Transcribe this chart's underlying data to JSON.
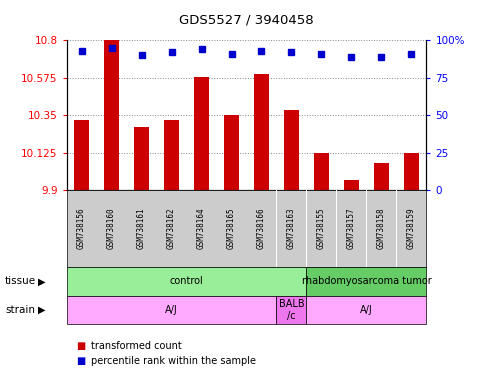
{
  "title": "GDS5527 / 3940458",
  "samples": [
    "GSM738156",
    "GSM738160",
    "GSM738161",
    "GSM738162",
    "GSM738164",
    "GSM738165",
    "GSM738166",
    "GSM738163",
    "GSM738155",
    "GSM738157",
    "GSM738158",
    "GSM738159"
  ],
  "bar_values": [
    10.32,
    10.8,
    10.28,
    10.32,
    10.58,
    10.35,
    10.6,
    10.38,
    10.125,
    9.96,
    10.06,
    10.125
  ],
  "dot_values": [
    93,
    95,
    90,
    92,
    94,
    91,
    93,
    92,
    91,
    89,
    89,
    91
  ],
  "ymin": 9.9,
  "ymax": 10.8,
  "yticks": [
    9.9,
    10.125,
    10.35,
    10.575,
    10.8
  ],
  "ytick_labels": [
    "9.9",
    "10.125",
    "10.35",
    "10.575",
    "10.8"
  ],
  "y2ticks": [
    0,
    25,
    50,
    75,
    100
  ],
  "y2tick_labels": [
    "0",
    "25",
    "50",
    "75",
    "100%"
  ],
  "bar_color": "#cc0000",
  "dot_color": "#0000cc",
  "tissue_groups": [
    {
      "label": "control",
      "start": 0,
      "end": 8,
      "color": "#99ee99"
    },
    {
      "label": "rhabdomyosarcoma tumor",
      "start": 8,
      "end": 12,
      "color": "#66cc66"
    }
  ],
  "strain_groups": [
    {
      "label": "A/J",
      "start": 0,
      "end": 7,
      "color": "#ffaaff"
    },
    {
      "label": "BALB\n/c",
      "start": 7,
      "end": 8,
      "color": "#ee77ee"
    },
    {
      "label": "A/J",
      "start": 8,
      "end": 12,
      "color": "#ffaaff"
    }
  ],
  "tissue_label": "tissue",
  "strain_label": "strain",
  "legend_bar": "transformed count",
  "legend_dot": "percentile rank within the sample",
  "bar_width": 0.5,
  "grid_color": "#888888",
  "sample_bg_color": "#cccccc",
  "border_color": "#000000"
}
